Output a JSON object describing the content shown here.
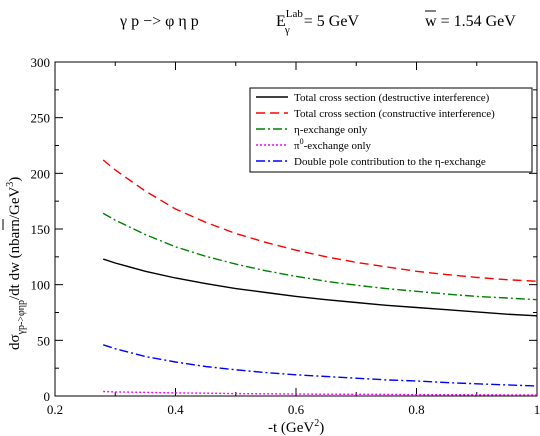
{
  "chart_data": {
    "type": "line",
    "title": {
      "reaction": "γ p  −> φ η p",
      "energy_label": "E",
      "energy_sub": "γ",
      "energy_sup": "Lab",
      "energy_value": " = 5 GeV",
      "w_label": "w",
      "w_value": " = 1.54 GeV"
    },
    "xlabel": {
      "main": "-t (GeV",
      "sup": "2",
      "end": ")"
    },
    "ylabel": {
      "prefix": "dσ",
      "sub": "γp->φηp",
      "middle": "/dt d",
      "wbar": "w",
      "suffix": " (nbarn/GeV",
      "sup": "3",
      "end": ")"
    },
    "xlim": [
      0.2,
      1.0
    ],
    "ylim": [
      0,
      300
    ],
    "x_ticks": [
      "0.2",
      "0.4",
      "0.6",
      "0.8",
      "1"
    ],
    "y_ticks": [
      "0",
      "50",
      "100",
      "150",
      "200",
      "250",
      "300"
    ],
    "grid": false,
    "legend_position": "top-right",
    "x": [
      0.28,
      0.3,
      0.35,
      0.4,
      0.45,
      0.5,
      0.55,
      0.6,
      0.65,
      0.7,
      0.75,
      0.8,
      0.85,
      0.9,
      0.95,
      1.0
    ],
    "series": [
      {
        "name": "Total cross section (destructive interference)",
        "color": "#000000",
        "dash": "solid",
        "values": [
          123,
          119.5,
          112,
          106,
          101,
          96.5,
          93,
          89.5,
          86.5,
          84,
          81.5,
          79.5,
          77.5,
          75.5,
          73.5,
          72
        ]
      },
      {
        "name": "Total cross section (constructive interference)",
        "color": "#ff0000",
        "dash": "dashed",
        "values": [
          212,
          203,
          184,
          168,
          156,
          146,
          138,
          131,
          125,
          120,
          116,
          112,
          109,
          106.5,
          104.5,
          103
        ]
      },
      {
        "name": "η-exchange only",
        "color": "#008000",
        "dash": "dash-dot",
        "values": [
          164,
          158,
          145,
          134,
          125.5,
          118.5,
          112.5,
          107.5,
          103,
          99.5,
          96.5,
          94,
          91.5,
          89.5,
          88,
          86.5
        ]
      },
      {
        "name": "π",
        "name_sup": "0",
        "name_rest": "-exchange only",
        "color": "#ff00ff",
        "dash": "dotted",
        "values": [
          4,
          3.7,
          3.2,
          2.8,
          2.5,
          2.2,
          2.0,
          1.8,
          1.6,
          1.5,
          1.4,
          1.3,
          1.2,
          1.1,
          1.0,
          1.0
        ]
      },
      {
        "name": "Double pole contribution to the η-exchange",
        "color": "#0000ff",
        "dash": "dash-dot",
        "values": [
          46,
          42.5,
          35.5,
          30.5,
          26.5,
          23.5,
          21,
          19,
          17.5,
          16,
          14.5,
          13.5,
          12,
          11,
          10,
          9
        ]
      }
    ]
  }
}
